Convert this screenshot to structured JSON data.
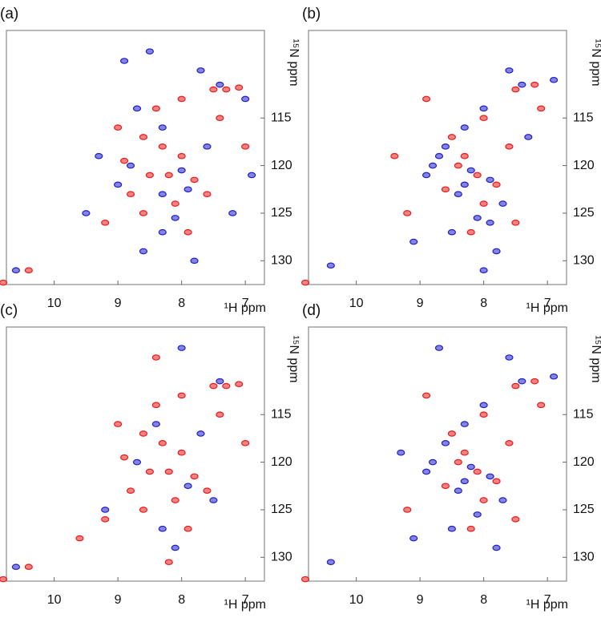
{
  "chart_data": [
    {
      "type": "scatter",
      "title": "(a)",
      "x_label": "¹H ppm",
      "y_label": "¹⁵N ppm",
      "xlim": [
        10.75,
        6.7
      ],
      "ylim": [
        105.8,
        132.5
      ],
      "xticks": [
        10,
        9,
        8,
        7
      ],
      "yticks": [
        115,
        120,
        125,
        130
      ],
      "series": [
        {
          "color": "#1f1fc8",
          "x": [
            7.4,
            8.9,
            8.5,
            7.7,
            8.3,
            8.8,
            8.0,
            7.9,
            8.3,
            9.0,
            7.2,
            8.3,
            8.6,
            7.8,
            9.5,
            6.9,
            8.1,
            10.6,
            7.6,
            8.7,
            9.3,
            7.0
          ],
          "values": [
            111.5,
            109,
            108,
            110,
            116,
            120,
            120.5,
            122.5,
            123,
            122,
            125,
            127,
            129,
            130,
            125,
            121,
            125.5,
            131,
            118,
            114,
            119,
            113
          ]
        },
        {
          "color": "#e81c1c",
          "x": [
            7.5,
            7.3,
            7.1,
            8.0,
            8.4,
            8.6,
            8.3,
            8.0,
            8.2,
            7.8,
            8.5,
            8.8,
            7.6,
            8.1,
            8.6,
            9.2,
            7.9,
            10.4,
            10.8,
            7.4,
            9.0,
            8.9,
            7.0
          ],
          "values": [
            112,
            112,
            111.8,
            113,
            114,
            117,
            118,
            119,
            121,
            121.5,
            121,
            123,
            123,
            124,
            125,
            126,
            127,
            131,
            132.3,
            115,
            116,
            119.5,
            118
          ]
        }
      ]
    },
    {
      "type": "scatter",
      "title": "(b)",
      "x_label": "¹H ppm",
      "y_label": "¹⁵N ppm",
      "xlim": [
        10.75,
        6.7
      ],
      "ylim": [
        105.8,
        132.5
      ],
      "xticks": [
        10,
        9,
        8,
        7
      ],
      "yticks": [
        115,
        120,
        125,
        130
      ],
      "series": [
        {
          "color": "#1f1fc8",
          "x": [
            7.4,
            7.6,
            8.0,
            8.3,
            8.6,
            8.8,
            8.2,
            7.9,
            8.4,
            8.9,
            7.7,
            8.1,
            8.5,
            7.8,
            8.0,
            9.1,
            7.3,
            10.4,
            8.7,
            6.9,
            8.3,
            7.9
          ],
          "values": [
            111.5,
            110,
            114,
            116,
            118,
            120,
            120.5,
            121.5,
            123,
            121,
            124,
            125.5,
            127,
            129,
            131,
            128,
            117,
            130.5,
            119,
            111,
            122,
            126
          ]
        },
        {
          "color": "#e81c1c",
          "x": [
            7.5,
            7.2,
            8.0,
            8.5,
            8.3,
            8.1,
            7.8,
            8.6,
            8.0,
            9.2,
            7.5,
            8.9,
            10.8,
            9.4,
            8.2,
            7.6,
            8.4,
            7.1
          ],
          "values": [
            112,
            111.5,
            115,
            117,
            119,
            121,
            122,
            122.5,
            124,
            125,
            126,
            113,
            132.3,
            119,
            127,
            118,
            120,
            114
          ]
        }
      ]
    },
    {
      "type": "scatter",
      "title": "(c)",
      "x_label": "¹H ppm",
      "y_label": "¹⁵N ppm",
      "xlim": [
        10.75,
        6.7
      ],
      "ylim": [
        105.8,
        132.5
      ],
      "xticks": [
        10,
        9,
        8,
        7
      ],
      "yticks": [
        115,
        120,
        125,
        130
      ],
      "series": [
        {
          "color": "#1f1fc8",
          "x": [
            7.4,
            8.0,
            8.4,
            8.7,
            7.9,
            8.3,
            7.5,
            9.2,
            8.1,
            10.6,
            7.7
          ],
          "values": [
            111.5,
            108,
            116,
            120,
            122.5,
            127,
            124,
            125,
            129,
            131,
            117
          ]
        },
        {
          "color": "#e81c1c",
          "x": [
            7.5,
            7.3,
            7.1,
            8.0,
            8.4,
            8.6,
            8.3,
            8.0,
            8.2,
            7.8,
            8.5,
            8.8,
            7.6,
            8.1,
            8.6,
            9.2,
            7.9,
            10.4,
            10.8,
            7.4,
            9.0,
            8.9,
            7.0,
            8.4,
            9.6,
            8.2
          ],
          "values": [
            112,
            112,
            111.8,
            113,
            114,
            117,
            118,
            119,
            121,
            121.5,
            121,
            123,
            123,
            124,
            125,
            126,
            127,
            131,
            132.3,
            115,
            116,
            119.5,
            118,
            109,
            128,
            130.5
          ]
        }
      ]
    },
    {
      "type": "scatter",
      "title": "(d)",
      "x_label": "¹H ppm",
      "y_label": "¹⁵N ppm",
      "xlim": [
        10.75,
        6.7
      ],
      "ylim": [
        105.8,
        132.5
      ],
      "xticks": [
        10,
        9,
        8,
        7
      ],
      "yticks": [
        115,
        120,
        125,
        130
      ],
      "series": [
        {
          "color": "#1f1fc8",
          "x": [
            7.4,
            7.6,
            8.0,
            8.3,
            8.6,
            8.8,
            8.2,
            7.9,
            8.4,
            8.9,
            7.7,
            8.1,
            8.5,
            7.8,
            9.1,
            10.4,
            6.9,
            8.7,
            8.3,
            9.3
          ],
          "values": [
            111.5,
            109,
            114,
            116,
            118,
            120,
            120.5,
            121.5,
            123,
            121,
            124,
            125.5,
            127,
            129,
            128,
            130.5,
            111,
            108,
            122,
            119
          ]
        },
        {
          "color": "#e81c1c",
          "x": [
            7.5,
            7.2,
            8.0,
            8.5,
            8.3,
            8.1,
            7.8,
            8.6,
            8.0,
            9.2,
            7.5,
            8.9,
            10.8,
            8.2,
            7.6,
            8.4,
            7.1
          ],
          "values": [
            112,
            111.5,
            115,
            117,
            119,
            121,
            122,
            122.5,
            124,
            125,
            126,
            113,
            132.3,
            127,
            118,
            120,
            114
          ]
        }
      ]
    }
  ]
}
